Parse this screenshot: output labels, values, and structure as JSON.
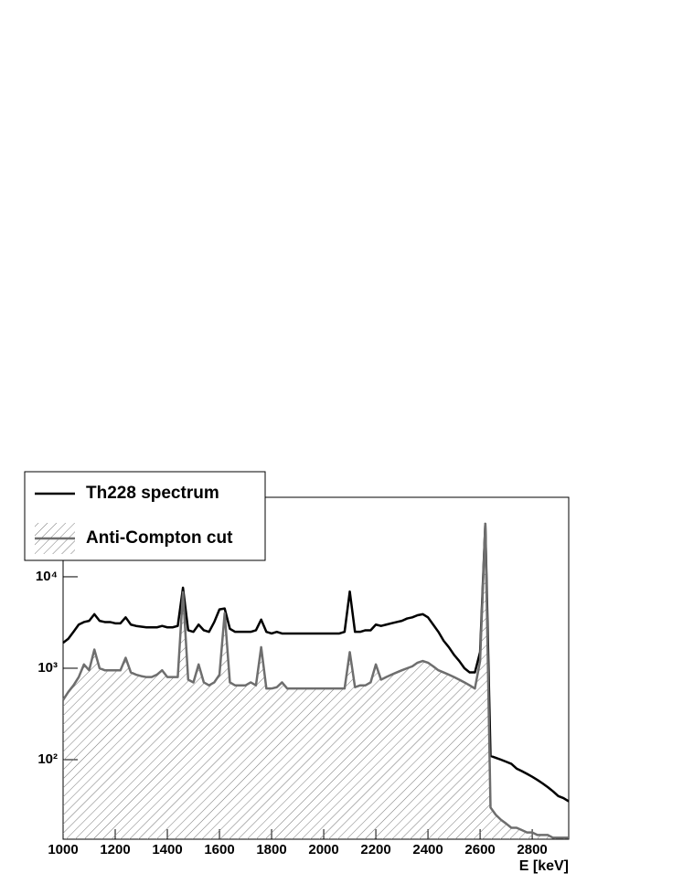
{
  "chart_data": {
    "type": "line",
    "xlabel": "E [keV]",
    "xlim": [
      1000,
      2940
    ],
    "xticks": [
      1000,
      1200,
      1400,
      1600,
      1800,
      2000,
      2200,
      2400,
      2600,
      2800
    ],
    "ylim": [
      13.5,
      74000
    ],
    "ylog": true,
    "yticks": [
      {
        "value": 100,
        "label": "10²"
      },
      {
        "value": 1000,
        "label": "10³"
      },
      {
        "value": 10000,
        "label": "10⁴"
      }
    ],
    "legend": "top-left",
    "x": [
      1000,
      1020,
      1040,
      1060,
      1080,
      1100,
      1120,
      1140,
      1160,
      1180,
      1200,
      1220,
      1240,
      1260,
      1280,
      1300,
      1320,
      1340,
      1360,
      1380,
      1400,
      1420,
      1440,
      1460,
      1480,
      1500,
      1520,
      1540,
      1560,
      1580,
      1600,
      1620,
      1640,
      1660,
      1680,
      1700,
      1720,
      1740,
      1760,
      1780,
      1800,
      1820,
      1840,
      1860,
      1880,
      1900,
      1920,
      1940,
      1960,
      1980,
      2000,
      2020,
      2040,
      2060,
      2080,
      2100,
      2120,
      2140,
      2160,
      2180,
      2200,
      2220,
      2240,
      2260,
      2280,
      2300,
      2320,
      2340,
      2360,
      2380,
      2400,
      2420,
      2440,
      2460,
      2480,
      2500,
      2520,
      2540,
      2560,
      2580,
      2600,
      2620,
      2640,
      2660,
      2680,
      2700,
      2720,
      2740,
      2760,
      2780,
      2800,
      2820,
      2840,
      2860,
      2880,
      2900,
      2920,
      2940
    ],
    "series": [
      {
        "name": "Th228 spectrum",
        "color": "#000000",
        "values": [
          1900,
          2100,
          2500,
          3000,
          3200,
          3300,
          3900,
          3300,
          3200,
          3200,
          3100,
          3100,
          3600,
          3000,
          2900,
          2850,
          2800,
          2800,
          2800,
          2900,
          2800,
          2800,
          2900,
          7600,
          2600,
          2500,
          3000,
          2600,
          2500,
          3200,
          4400,
          4500,
          2700,
          2500,
          2500,
          2500,
          2500,
          2600,
          3400,
          2500,
          2400,
          2500,
          2400,
          2400,
          2400,
          2400,
          2400,
          2400,
          2400,
          2400,
          2400,
          2400,
          2400,
          2400,
          2500,
          6900,
          2500,
          2500,
          2600,
          2600,
          3000,
          2900,
          3000,
          3100,
          3200,
          3300,
          3500,
          3600,
          3800,
          3900,
          3600,
          3000,
          2500,
          2000,
          1700,
          1400,
          1200,
          1000,
          900,
          900,
          1500,
          38000,
          110,
          105,
          100,
          95,
          90,
          80,
          75,
          70,
          65,
          60,
          55,
          50,
          45,
          40,
          38,
          35
        ]
      },
      {
        "name": "Anti-Compton cut",
        "color": "#6e6e6e",
        "fill": "hatch",
        "values": [
          450,
          550,
          650,
          800,
          1100,
          950,
          1600,
          1000,
          950,
          950,
          950,
          950,
          1300,
          900,
          850,
          820,
          800,
          800,
          850,
          950,
          800,
          800,
          800,
          6800,
          750,
          700,
          1100,
          700,
          650,
          700,
          850,
          4000,
          700,
          650,
          650,
          650,
          700,
          650,
          1700,
          600,
          600,
          620,
          700,
          600,
          600,
          600,
          600,
          600,
          600,
          600,
          600,
          600,
          600,
          600,
          600,
          1500,
          620,
          650,
          650,
          700,
          1100,
          750,
          800,
          850,
          900,
          950,
          1000,
          1050,
          1150,
          1200,
          1150,
          1050,
          950,
          900,
          850,
          800,
          750,
          700,
          650,
          600,
          1200,
          38000,
          30,
          25,
          22,
          20,
          18,
          18,
          17,
          16,
          16,
          15,
          15,
          15,
          14,
          14,
          14,
          14
        ]
      }
    ]
  }
}
